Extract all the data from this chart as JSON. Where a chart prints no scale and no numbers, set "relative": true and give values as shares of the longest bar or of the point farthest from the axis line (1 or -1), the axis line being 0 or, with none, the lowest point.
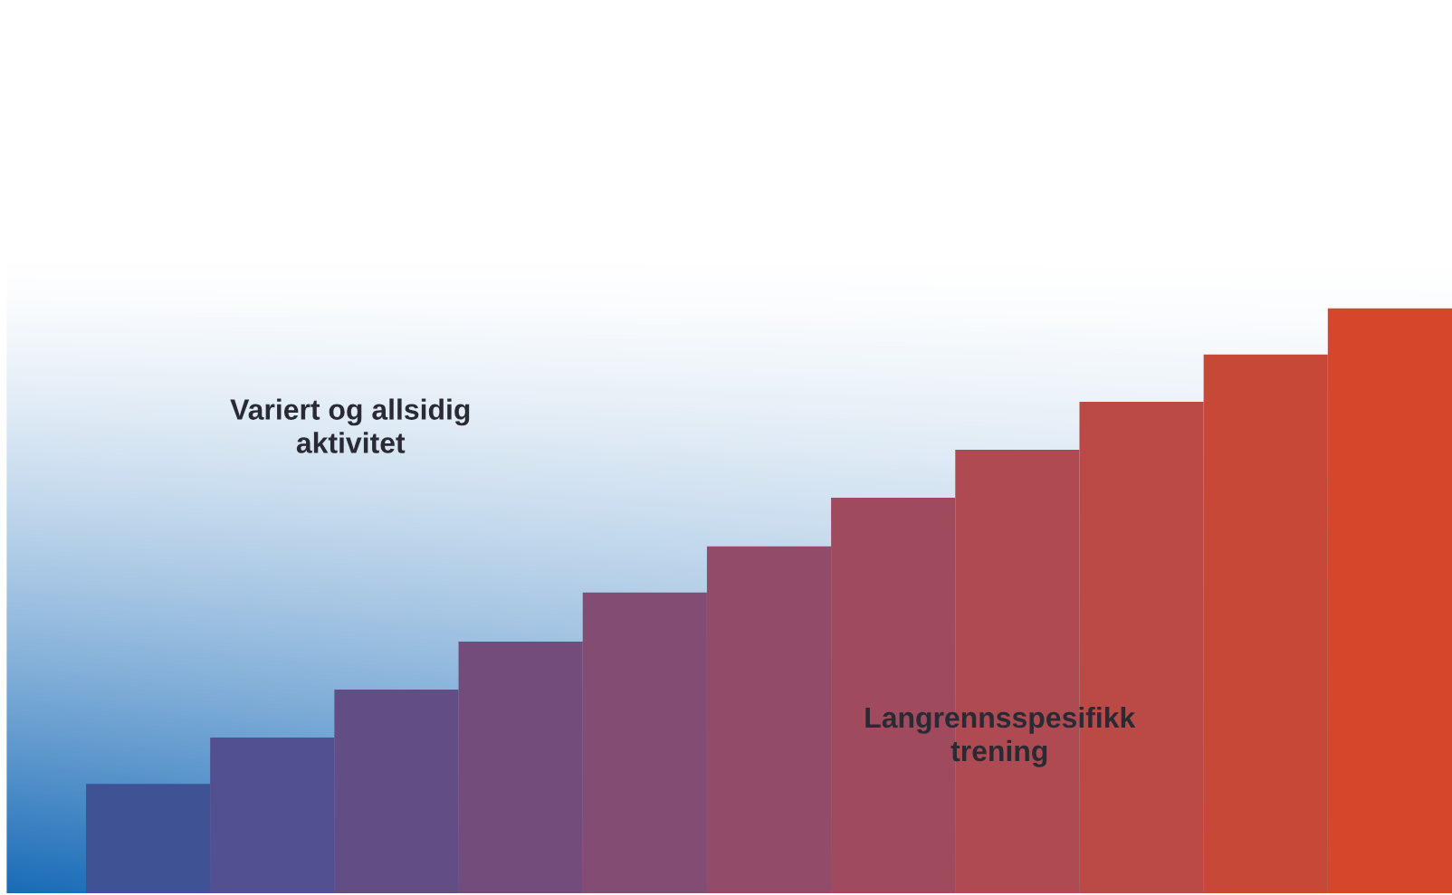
{
  "chart_data": {
    "type": "bar",
    "relative": true,
    "categories": [
      null,
      null,
      null,
      null,
      null,
      null,
      null,
      null,
      null,
      null,
      null
    ],
    "values": [
      0.187,
      0.266,
      0.348,
      0.43,
      0.514,
      0.593,
      0.676,
      0.758,
      0.84,
      0.921,
      1
    ],
    "colors": [
      "#3f5394",
      "#525090",
      "#634d85",
      "#734c7c",
      "#834c72",
      "#924b68",
      "#a04b5d",
      "#ad4a52",
      "#bb4945",
      "#c84838",
      "#d6462b"
    ],
    "annotations": [
      "Variert og allsidig\naktivitet",
      "Langrennsspesifikk\ntrening"
    ]
  }
}
